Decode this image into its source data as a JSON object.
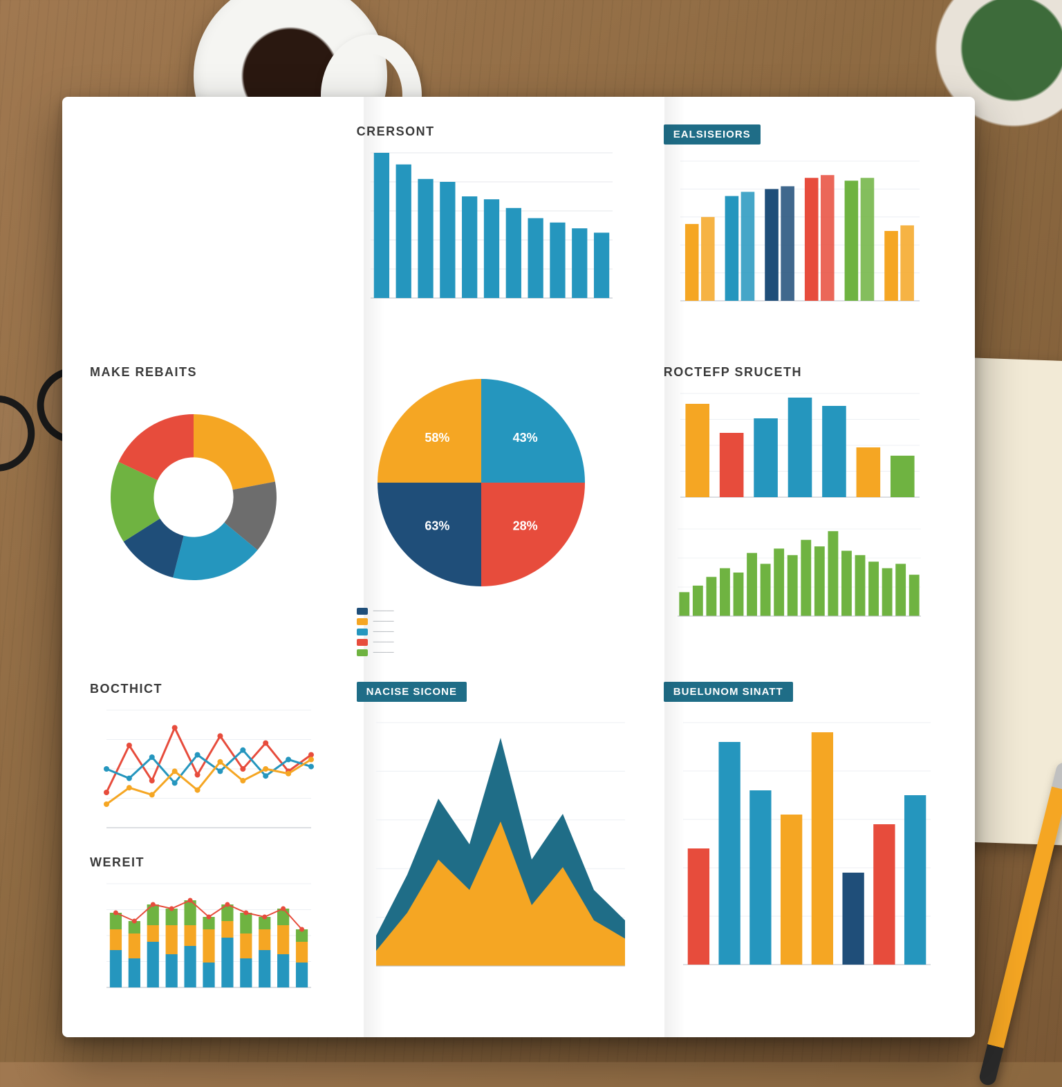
{
  "scene": {
    "background": "wood-desk",
    "props": [
      "coffee-mug",
      "eyeglasses",
      "plant",
      "notebook",
      "pen"
    ]
  },
  "palette": {
    "blue": "#2596be",
    "navy": "#1f4e79",
    "orange": "#f5a623",
    "red": "#e74c3c",
    "green": "#6fb341",
    "grey": "#6d6d6d",
    "teal_banner": "#1f6d87",
    "grid": "#e5e7eb",
    "axis": "#b8bdc4",
    "text": "#3a3a3a",
    "muted": "#9aa0a6",
    "page": "#ffffff"
  },
  "panels": {
    "top_bar": {
      "title": "CRERSONT",
      "type": "bar",
      "values": [
        100,
        92,
        82,
        80,
        70,
        68,
        62,
        55,
        52,
        48,
        45
      ],
      "bar_color": "#2596be",
      "ylim": [
        0,
        100
      ],
      "x_labels": [
        "",
        "",
        "",
        "",
        "",
        "",
        "",
        "",
        "",
        "",
        ""
      ],
      "grid_color": "#e5e7eb",
      "label_fontsize": 8
    },
    "top_right_bar": {
      "title": "EALSISEIORS",
      "banner": true,
      "type": "grouped-bar",
      "groups": [
        [
          55,
          75,
          80,
          88,
          86,
          50
        ],
        [
          60,
          78,
          82,
          90,
          88,
          54
        ]
      ],
      "colors": [
        "#f5a623",
        "#2596be",
        "#1f4e79",
        "#e74c3c",
        "#6fb341",
        "#f5a623"
      ],
      "ylim": [
        0,
        100
      ],
      "x_labels": [
        "",
        "",
        "",
        "",
        "",
        ""
      ],
      "grid_color": "#eceff3"
    },
    "donut": {
      "title": "MAKE REBAITS",
      "type": "donut",
      "slices": [
        {
          "value": 22,
          "color": "#f5a623"
        },
        {
          "value": 14,
          "color": "#6d6d6d"
        },
        {
          "value": 18,
          "color": "#2596be"
        },
        {
          "value": 12,
          "color": "#1f4e79"
        },
        {
          "value": 16,
          "color": "#6fb341"
        },
        {
          "value": 18,
          "color": "#e74c3c"
        }
      ],
      "inner_radius_pct": 48,
      "legend_title": "",
      "legend": [
        "",
        "",
        ""
      ]
    },
    "pie": {
      "type": "pie",
      "slice_labels": [
        "43%",
        "28%",
        "63%",
        "58%"
      ],
      "slices": [
        {
          "label": "43%",
          "value": 25,
          "color": "#2596be"
        },
        {
          "label": "28%",
          "value": 25,
          "color": "#e74c3c"
        },
        {
          "label": "63%",
          "value": 25,
          "color": "#1f4e79"
        },
        {
          "label": "58%",
          "value": 25,
          "color": "#f5a623"
        }
      ],
      "label_color": "#ffffff",
      "label_fontsize": 18,
      "legend": [
        {
          "color": "#1f4e79",
          "label": ""
        },
        {
          "color": "#f5a623",
          "label": ""
        },
        {
          "color": "#2596be",
          "label": ""
        },
        {
          "color": "#e74c3c",
          "label": ""
        },
        {
          "color": "#6fb341",
          "label": ""
        }
      ]
    },
    "mid_right_bar": {
      "title": "ROCTEFP SRUCETH",
      "type": "bar",
      "values": [
        90,
        62,
        76,
        96,
        88,
        48,
        40
      ],
      "colors": [
        "#f5a623",
        "#e74c3c",
        "#2596be",
        "#2596be",
        "#2596be",
        "#f5a623",
        "#6fb341"
      ],
      "ylim": [
        0,
        100
      ],
      "x_labels": [
        "",
        "",
        "",
        "",
        "",
        "",
        ""
      ],
      "grid_color": "#eceff3"
    },
    "mid_right_green": {
      "type": "bar",
      "title": "",
      "values": [
        22,
        28,
        36,
        44,
        40,
        58,
        48,
        62,
        56,
        70,
        64,
        78,
        60,
        56,
        50,
        44,
        48,
        38
      ],
      "bar_color": "#6fb341",
      "ylim": [
        0,
        80
      ],
      "grid_color": "#f1f3f5"
    },
    "line_chart": {
      "title": "BOCTHICT",
      "type": "line-multi",
      "x": [
        0,
        1,
        2,
        3,
        4,
        5,
        6,
        7,
        8,
        9
      ],
      "series": [
        {
          "color": "#e74c3c",
          "points": [
            30,
            70,
            40,
            85,
            45,
            78,
            50,
            72,
            48,
            62
          ]
        },
        {
          "color": "#2596be",
          "points": [
            50,
            42,
            60,
            38,
            62,
            48,
            66,
            44,
            58,
            52
          ]
        },
        {
          "color": "#f5a623",
          "points": [
            20,
            34,
            28,
            48,
            32,
            56,
            40,
            50,
            46,
            58
          ]
        }
      ],
      "ylim": [
        0,
        100
      ],
      "marker_radius": 4,
      "line_width": 3,
      "grid_color": "#eceff3"
    },
    "stacked_small": {
      "title": "WEREIT",
      "type": "stacked-bar",
      "categories": [
        "",
        "",
        "",
        "",
        "",
        "",
        "",
        "",
        "",
        "",
        ""
      ],
      "stacks": [
        [
          18,
          10,
          8
        ],
        [
          14,
          12,
          6
        ],
        [
          22,
          8,
          10
        ],
        [
          16,
          14,
          8
        ],
        [
          20,
          10,
          12
        ],
        [
          12,
          16,
          6
        ],
        [
          24,
          8,
          8
        ],
        [
          14,
          12,
          10
        ],
        [
          18,
          10,
          6
        ],
        [
          16,
          14,
          8
        ],
        [
          12,
          10,
          6
        ]
      ],
      "colors": [
        "#2596be",
        "#f5a623",
        "#6fb341"
      ],
      "ylim": [
        0,
        50
      ],
      "grid_color": "#eceff3",
      "marker_line_color": "#e74c3c"
    },
    "area_chart": {
      "title": "NACISE SICONE",
      "banner": true,
      "type": "area-stacked",
      "x": [
        0,
        1,
        2,
        3,
        4,
        5,
        6,
        7,
        8
      ],
      "series": [
        {
          "color": "#f5a623",
          "points": [
            10,
            35,
            70,
            50,
            95,
            40,
            65,
            30,
            18
          ]
        },
        {
          "color": "#1f6d87",
          "points": [
            20,
            60,
            110,
            80,
            150,
            70,
            100,
            50,
            30
          ]
        }
      ],
      "ylim": [
        0,
        160
      ],
      "grid_color": "#eceff3"
    },
    "bottom_right_bar": {
      "title": "BUELUNOM SINATT",
      "banner": true,
      "type": "bar",
      "values": [
        48,
        92,
        72,
        62,
        96,
        38,
        58,
        70
      ],
      "colors": [
        "#e74c3c",
        "#2596be",
        "#2596be",
        "#f5a623",
        "#f5a623",
        "#1f4e79",
        "#e74c3c",
        "#2596be"
      ],
      "ylim": [
        0,
        100
      ],
      "x_labels": [
        "",
        "",
        "",
        "",
        "",
        "",
        "",
        ""
      ],
      "grid_color": "#eceff3"
    }
  }
}
